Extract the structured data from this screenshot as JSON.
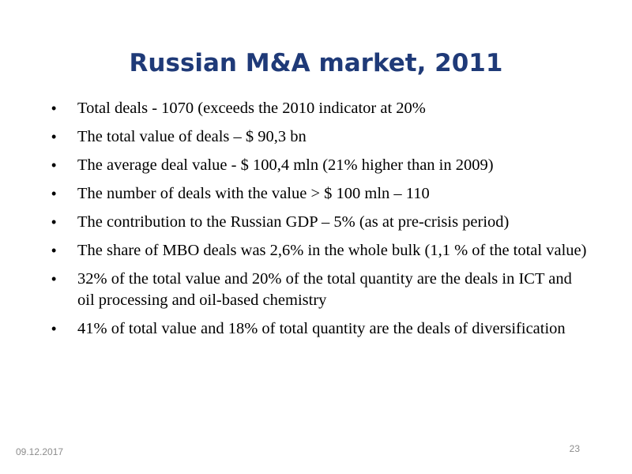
{
  "slide": {
    "title": "Russian M&A market, 2011",
    "bullet_marker": "•",
    "bullets": [
      "Total deals - 1070 (exceeds the 2010 indicator at 20%",
      "The total value of deals – $ 90,3 bn",
      "The average deal value - $ 100,4 mln (21% higher than in 2009)",
      "The number of deals with the value > $ 100 mln – 110",
      "The contribution to the Russian GDP – 5% (as at pre-crisis period)",
      "The share of MBO deals was 2,6% in the whole bulk (1,1 % of the total value)",
      "32% of the total value and 20% of the total quantity are the deals in ICT and oil processing and oil-based chemistry",
      "41% of total value and 18% of total quantity are the deals of diversification"
    ],
    "footer": {
      "date": "09.12.2017",
      "page_number": "23"
    },
    "colors": {
      "title": "#1f3a78",
      "body_text": "#000000",
      "footer_text": "#8c8c8c",
      "background": "#ffffff"
    }
  }
}
